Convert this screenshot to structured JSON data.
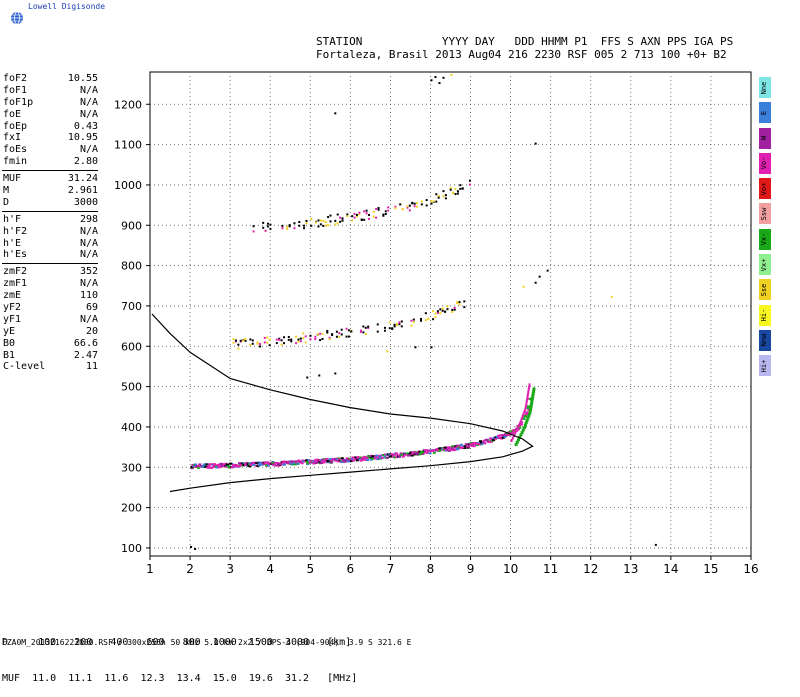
{
  "logo": {
    "text": "Lowell Digisonde"
  },
  "header": {
    "line1": "STATION            YYYY DAY   DDD HHMM P1  FFS S AXN PPS IGA PS",
    "line2": "Fortaleza, Brasil 2013 Aug04 216 2230 RSF 005 2 713 100 +0+ B2"
  },
  "params": [
    [
      {
        "label": "foF2",
        "value": "10.55"
      },
      {
        "label": "foF1",
        "value": "N/A"
      },
      {
        "label": "foF1p",
        "value": "N/A"
      },
      {
        "label": "foE",
        "value": "N/A"
      },
      {
        "label": "foEp",
        "value": "0.43"
      },
      {
        "label": "fxI",
        "value": "10.95"
      },
      {
        "label": "foEs",
        "value": "N/A"
      },
      {
        "label": "fmin",
        "value": "2.80"
      }
    ],
    [
      {
        "label": "MUF",
        "value": "31.24"
      },
      {
        "label": "M",
        "value": "2.961"
      },
      {
        "label": "D",
        "value": "3000"
      }
    ],
    [
      {
        "label": "h'F",
        "value": "298"
      },
      {
        "label": "h'F2",
        "value": "N/A"
      },
      {
        "label": "h'E",
        "value": "N/A"
      },
      {
        "label": "h'Es",
        "value": "N/A"
      }
    ],
    [
      {
        "label": "zmF2",
        "value": "352"
      },
      {
        "label": "zmF1",
        "value": "N/A"
      },
      {
        "label": "zmE",
        "value": "110"
      },
      {
        "label": "yF2",
        "value": "69"
      },
      {
        "label": "yF1",
        "value": "N/A"
      },
      {
        "label": "yE",
        "value": "20"
      },
      {
        "label": "B0",
        "value": "66.6"
      },
      {
        "label": "B1",
        "value": "2.47"
      },
      {
        "label": "C-level",
        "value": "11"
      }
    ]
  ],
  "legend": [
    {
      "label": "Nne",
      "color": "#7fe6e6"
    },
    {
      "label": "E",
      "color": "#3a7fd8"
    },
    {
      "label": "W",
      "color": "#a020a0"
    },
    {
      "label": "Vo-",
      "color": "#e020b0"
    },
    {
      "label": "Vo+",
      "color": "#e01818"
    },
    {
      "label": "Ssw",
      "color": "#f0a0a0"
    },
    {
      "label": "Vx-",
      "color": "#18a818"
    },
    {
      "label": "Vx+",
      "color": "#90f090"
    },
    {
      "label": "Sse",
      "color": "#f0d020"
    },
    {
      "label": "Hi-",
      "color": "#f8f820"
    },
    {
      "label": "Nnw",
      "color": "#1848a0"
    },
    {
      "label": "Hi+",
      "color": "#b8b8f0"
    }
  ],
  "bottom": {
    "line1": "D     100   200   400   600   800  1000  1500  3000   [km]",
    "line2": "MUF  11.0  11.1  11.6  12.3  13.4  15.0  19.6  31.2   [MHz]"
  },
  "footer": "FZA0M_2013216223000.RSF / 300x256h 50 kHz 5.0 km 2x2 / DPS-4 (904-904)  3.9 S 321.6 E",
  "chart_data": {
    "type": "scatter",
    "xlim": [
      1,
      16
    ],
    "ylim": [
      80,
      1280
    ],
    "xticks": [
      1,
      2,
      3,
      4,
      5,
      6,
      7,
      8,
      9,
      10,
      11,
      12,
      13,
      14,
      15,
      16
    ],
    "yticks": [
      100,
      200,
      300,
      400,
      500,
      600,
      700,
      800,
      900,
      1000,
      1100,
      1200
    ],
    "grid": true,
    "series": [
      {
        "name": "F-trace",
        "x": [
          2.0,
          2.5,
          3.0,
          3.5,
          4.0,
          4.5,
          5.0,
          5.5,
          6.0,
          6.5,
          7.0,
          7.5,
          8.0,
          8.5,
          9.0,
          9.5,
          10.0,
          10.2,
          10.4,
          10.5
        ],
        "y": [
          305,
          306,
          307,
          309,
          311,
          313,
          316,
          319,
          322,
          326,
          331,
          336,
          342,
          349,
          358,
          370,
          388,
          405,
          440,
          500
        ]
      },
      {
        "name": "2F",
        "x": [
          3.0,
          3.5,
          4.0,
          4.5,
          5.0,
          5.5,
          6.0,
          6.5,
          7.0,
          7.5,
          8.0,
          8.5,
          9.0
        ],
        "y": [
          608,
          610,
          615,
          620,
          625,
          632,
          638,
          645,
          655,
          665,
          680,
          695,
          712
        ]
      },
      {
        "name": "3F",
        "x": [
          3.5,
          4.0,
          4.5,
          5.0,
          5.5,
          6.0,
          6.5,
          7.0,
          7.5,
          8.0,
          8.5,
          9.0
        ],
        "y": [
          895,
          898,
          902,
          907,
          915,
          922,
          930,
          940,
          950,
          965,
          985,
          1005
        ]
      },
      {
        "name": "profile",
        "x": [
          1.5,
          2.0,
          3.0,
          4.0,
          5.0,
          6.0,
          7.0,
          8.0,
          9.0,
          9.8,
          10.3,
          10.55,
          10.3,
          9.8,
          9.0,
          8.0,
          7.0,
          6.0,
          5.0,
          4.0,
          3.0,
          2.0,
          1.5,
          1.05
        ],
        "y": [
          240,
          248,
          262,
          272,
          280,
          288,
          296,
          304,
          314,
          326,
          340,
          352,
          370,
          390,
          408,
          422,
          432,
          448,
          468,
          492,
          520,
          585,
          632,
          680
        ]
      }
    ]
  }
}
